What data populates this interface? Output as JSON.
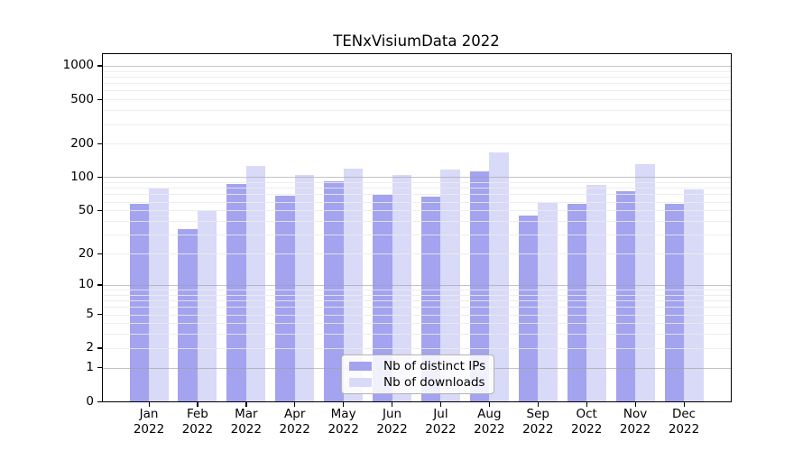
{
  "chart_data": {
    "type": "bar",
    "title": "TENxVisiumData 2022",
    "categories": [
      "Jan",
      "Feb",
      "Mar",
      "Apr",
      "May",
      "Jun",
      "Jul",
      "Aug",
      "Sep",
      "Oct",
      "Nov",
      "Dec"
    ],
    "x_tick_second_line": "2022",
    "series": [
      {
        "name": "Nb of distinct IPs",
        "color": "#a3a3f0",
        "values": [
          57,
          34,
          87,
          68,
          92,
          69,
          67,
          113,
          45,
          57,
          75,
          57
        ]
      },
      {
        "name": "Nb of downloads",
        "color": "#d9d9f8",
        "values": [
          79,
          50,
          126,
          104,
          120,
          104,
          117,
          167,
          58,
          85,
          131,
          78
        ]
      }
    ],
    "y_axis": {
      "scale": "log10(value+1)",
      "ticks": [
        0,
        1,
        2,
        5,
        10,
        20,
        50,
        100,
        200,
        500,
        1000
      ],
      "major_gridlines": [
        1,
        10,
        100,
        1000
      ],
      "minor_gridlines_per_decade": [
        2,
        3,
        4,
        5,
        6,
        7,
        8,
        9
      ],
      "ylim": [
        0,
        1000
      ]
    },
    "grid": "on",
    "legend_position": "bottom-center",
    "colors": {
      "major_grid": "#b0b0b0",
      "minor_grid": "#ebebeb",
      "axis": "#000000",
      "background": "#ffffff"
    }
  }
}
